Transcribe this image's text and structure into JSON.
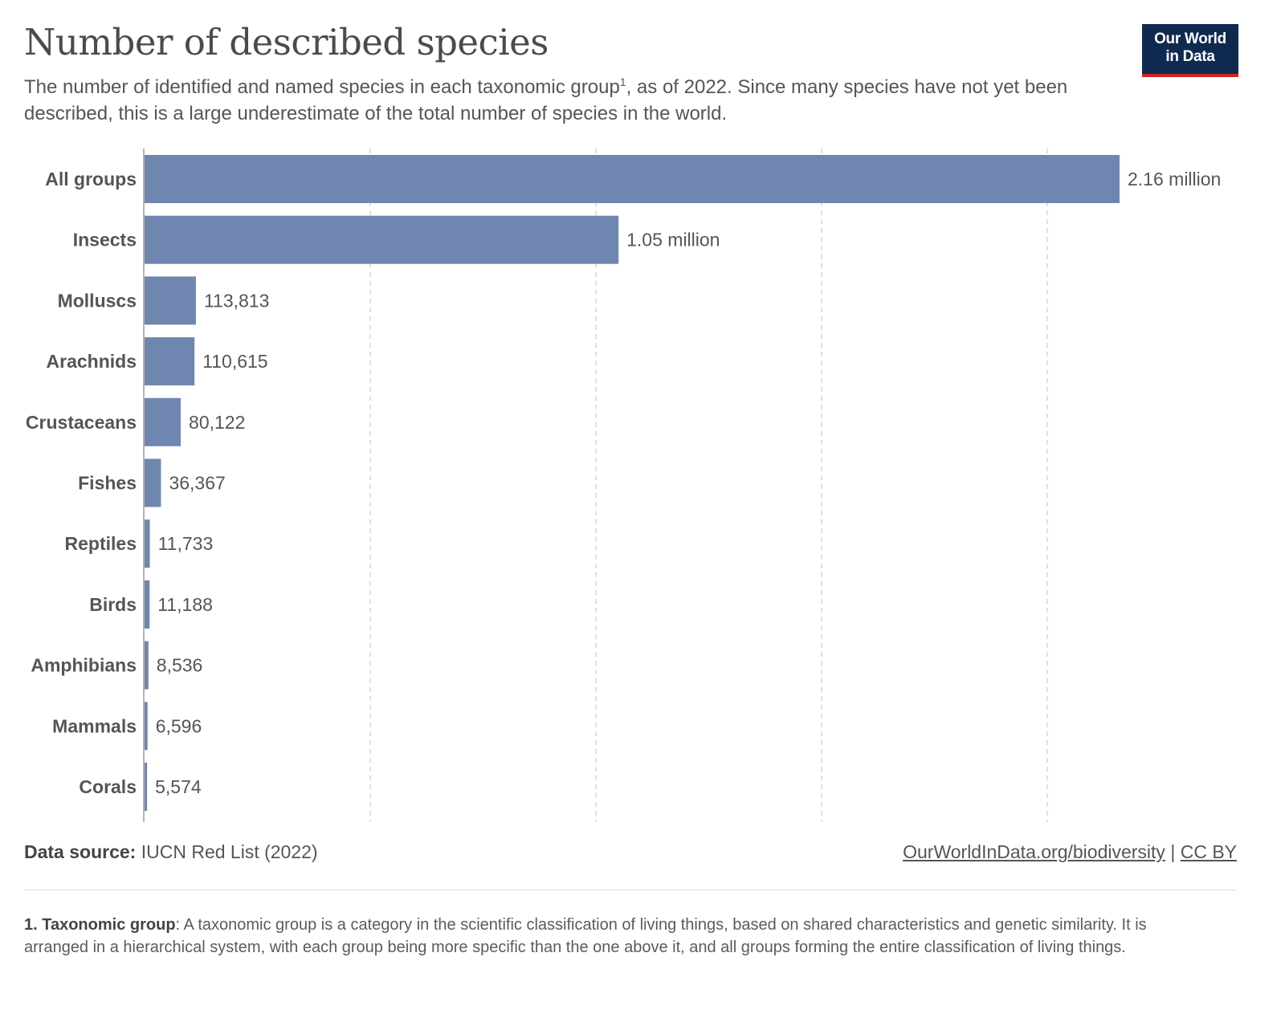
{
  "header": {
    "title": "Number of described species",
    "subtitle_part1": "The number of identified and named species in each taxonomic group",
    "subtitle_sup": "1",
    "subtitle_part2": ", as of 2022. Since many species have not yet been described, this is a large underestimate of the total number of species in the world.",
    "logo_line1": "Our World",
    "logo_line2": "in Data"
  },
  "colors": {
    "bar": "#6f86b0",
    "logo_bg": "#0f2a4f",
    "logo_accent": "#ce261e",
    "grid": "#d6d6d6"
  },
  "chart_data": {
    "type": "bar",
    "orientation": "horizontal",
    "categories": [
      "All groups",
      "Insects",
      "Molluscs",
      "Arachnids",
      "Crustaceans",
      "Fishes",
      "Reptiles",
      "Birds",
      "Amphibians",
      "Mammals",
      "Corals"
    ],
    "values": [
      2160000,
      1050000,
      113813,
      110615,
      80122,
      36367,
      11733,
      11188,
      8536,
      6596,
      5574
    ],
    "value_labels": [
      "2.16 million",
      "1.05 million",
      "113,813",
      "110,615",
      "80,122",
      "36,367",
      "11,733",
      "11,188",
      "8,536",
      "6,596",
      "5,574"
    ],
    "xlim": [
      0,
      2160000
    ],
    "gridlines": [
      500000,
      1000000,
      1500000,
      2000000
    ],
    "grid": true
  },
  "footer": {
    "source_label": "Data source:",
    "source_value": " IUCN Red List (2022)",
    "link_text": "OurWorldInData.org/biodiversity",
    "separator": " | ",
    "license": "CC BY"
  },
  "note": {
    "term": "1. Taxonomic group",
    "text": ": A taxonomic group is a category in the scientific classification of living things, based on shared characteristics and genetic similarity. It is arranged in a hierarchical system, with each group being more specific than the one above it, and all groups forming the entire classification of living things."
  }
}
